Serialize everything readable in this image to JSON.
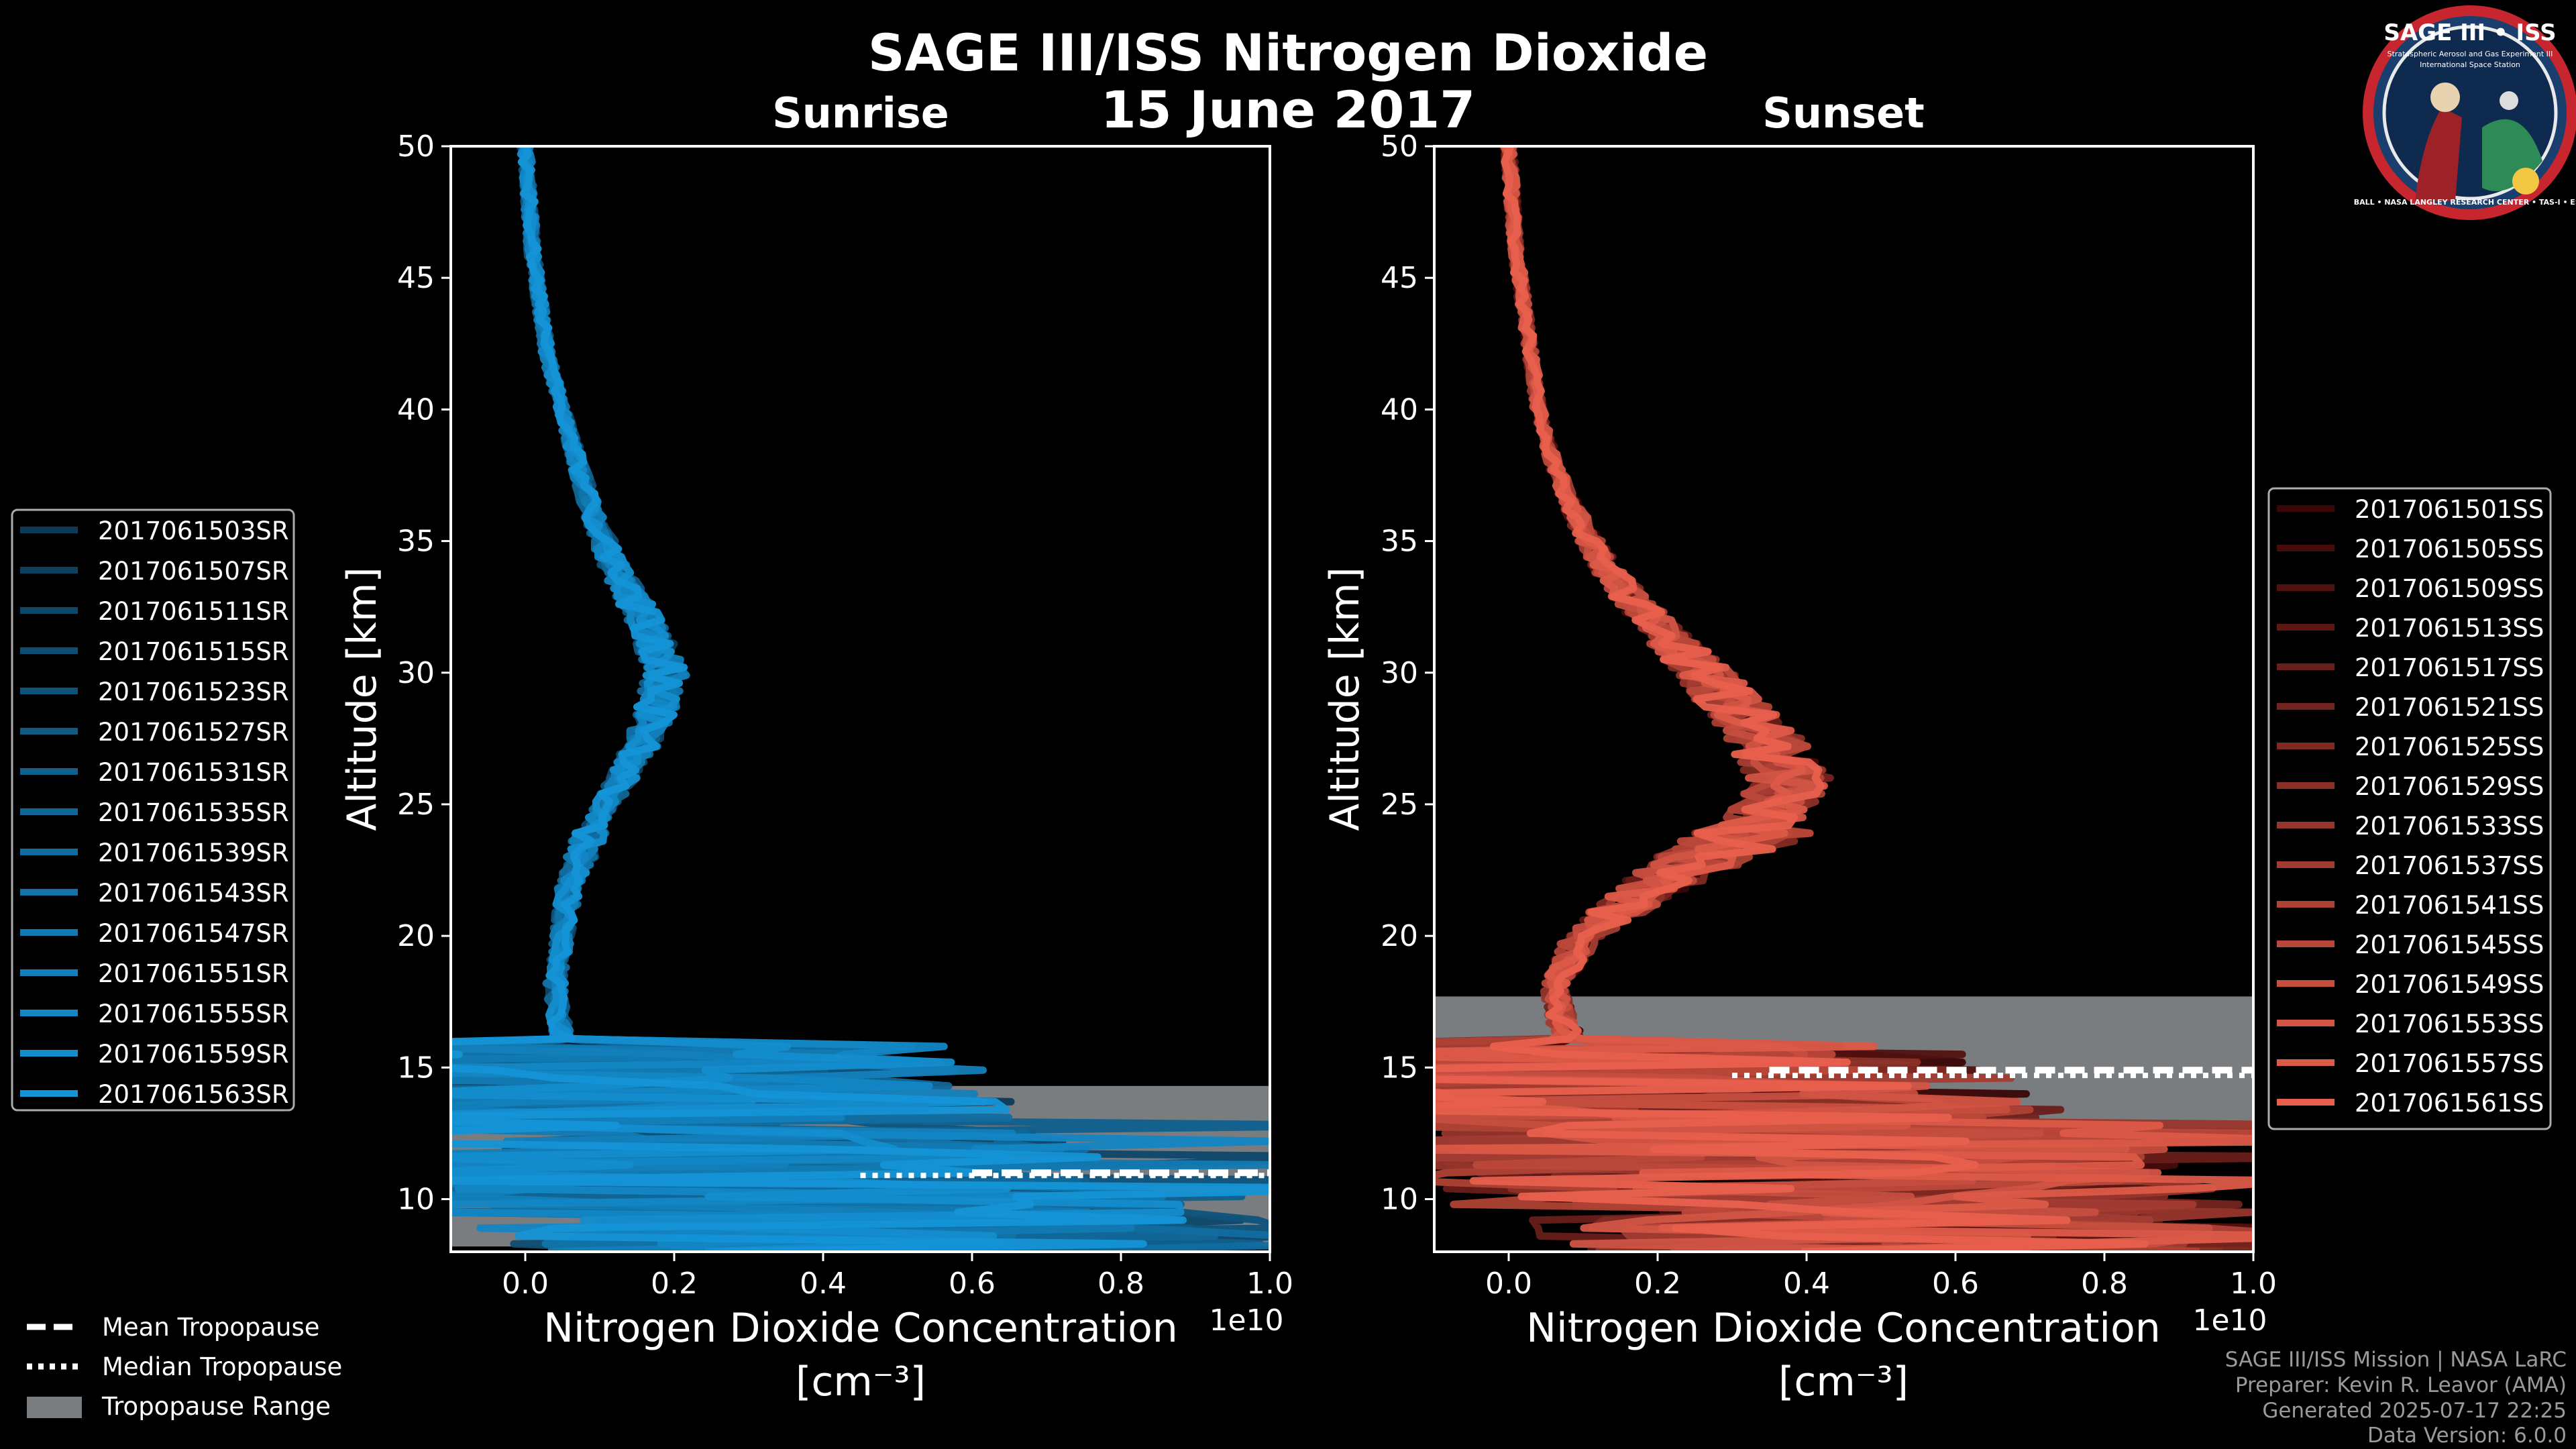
{
  "title": "SAGE III/ISS Nitrogen Dioxide",
  "date": "15 June 2017",
  "badge": {
    "label": "SAGE III • ISS",
    "line1": "Stratospheric Aerosol and Gas Experiment III",
    "line2": "International Space Station",
    "ring": "BALL • NASA LANGLEY RESEARCH CENTER • TAS-I • ESA"
  },
  "footer": {
    "line1": "SAGE III/ISS Mission | NASA LaRC",
    "line2": "Preparer: Kevin R. Leavor (AMA)",
    "line3": "Generated 2025-07-17 22:25",
    "line4": "Data Version: 6.0.0"
  },
  "tropopause_legend": {
    "mean": "Mean Tropopause",
    "median": "Median Tropopause",
    "range": "Tropopause Range"
  },
  "colors": {
    "sunrise_dark": "#0d3a57",
    "sunrise_light": "#1493d6",
    "sunset_dark": "#3a0606",
    "sunset_light": "#e8604d",
    "tropopause_fill": "#7a7d80"
  },
  "chart_data": [
    {
      "type": "line",
      "subtitle": "Sunrise",
      "xlabel": "Nitrogen Dioxide Concentration",
      "xunit": "[cm⁻³]",
      "xscale_label": "1e10",
      "ylabel": "Altitude [km]",
      "xlim": [
        -0.1,
        1.0
      ],
      "ylim": [
        8,
        50
      ],
      "xticks": [
        "0.0",
        "0.2",
        "0.4",
        "0.6",
        "0.8",
        "1.0"
      ],
      "xtick_values": [
        0.0,
        0.2,
        0.4,
        0.6,
        0.8,
        1.0
      ],
      "yticks": [
        "10",
        "15",
        "20",
        "25",
        "30",
        "35",
        "40",
        "45",
        "50"
      ],
      "ytick_values": [
        10,
        15,
        20,
        25,
        30,
        35,
        40,
        45,
        50
      ],
      "tropopause": {
        "min": 8.2,
        "max": 14.3,
        "mean": 11.0,
        "median": 10.9
      },
      "profile_alt": [
        8.5,
        10,
        12,
        14,
        16,
        18,
        20,
        22,
        24,
        26,
        28,
        30,
        32,
        34,
        36,
        38,
        40,
        42,
        44,
        46,
        48,
        50
      ],
      "profile_mean": [
        0.5,
        0.35,
        0.2,
        0.12,
        0.05,
        0.04,
        0.05,
        0.06,
        0.09,
        0.13,
        0.17,
        0.19,
        0.16,
        0.12,
        0.09,
        0.07,
        0.05,
        0.03,
        0.02,
        0.01,
        0.005,
        0.0
      ],
      "series": [
        {
          "name": "2017061503SR"
        },
        {
          "name": "2017061507SR"
        },
        {
          "name": "2017061511SR"
        },
        {
          "name": "2017061515SR"
        },
        {
          "name": "2017061523SR"
        },
        {
          "name": "2017061527SR"
        },
        {
          "name": "2017061531SR"
        },
        {
          "name": "2017061535SR"
        },
        {
          "name": "2017061539SR"
        },
        {
          "name": "2017061543SR"
        },
        {
          "name": "2017061547SR"
        },
        {
          "name": "2017061551SR"
        },
        {
          "name": "2017061555SR"
        },
        {
          "name": "2017061559SR"
        },
        {
          "name": "2017061563SR"
        }
      ]
    },
    {
      "type": "line",
      "subtitle": "Sunset",
      "xlabel": "Nitrogen Dioxide Concentration",
      "xunit": "[cm⁻³]",
      "xscale_label": "1e10",
      "ylabel": "Altitude [km]",
      "xlim": [
        -0.1,
        1.0
      ],
      "ylim": [
        8,
        50
      ],
      "xticks": [
        "0.0",
        "0.2",
        "0.4",
        "0.6",
        "0.8",
        "1.0"
      ],
      "xtick_values": [
        0.0,
        0.2,
        0.4,
        0.6,
        0.8,
        1.0
      ],
      "yticks": [
        "10",
        "15",
        "20",
        "25",
        "30",
        "35",
        "40",
        "45",
        "50"
      ],
      "ytick_values": [
        10,
        15,
        20,
        25,
        30,
        35,
        40,
        45,
        50
      ],
      "tropopause": {
        "min": 12.6,
        "max": 17.7,
        "mean": 14.9,
        "median": 14.7
      },
      "profile_alt": [
        8.5,
        10,
        12,
        14,
        16,
        18,
        20,
        22,
        24,
        26,
        28,
        30,
        32,
        34,
        36,
        38,
        40,
        42,
        44,
        46,
        48,
        50
      ],
      "profile_mean": [
        0.6,
        0.45,
        0.3,
        0.15,
        0.08,
        0.06,
        0.1,
        0.2,
        0.33,
        0.38,
        0.33,
        0.26,
        0.19,
        0.13,
        0.09,
        0.06,
        0.04,
        0.03,
        0.02,
        0.01,
        0.005,
        0.0
      ],
      "series": [
        {
          "name": "2017061501SS"
        },
        {
          "name": "2017061505SS"
        },
        {
          "name": "2017061509SS"
        },
        {
          "name": "2017061513SS"
        },
        {
          "name": "2017061517SS"
        },
        {
          "name": "2017061521SS"
        },
        {
          "name": "2017061525SS"
        },
        {
          "name": "2017061529SS"
        },
        {
          "name": "2017061533SS"
        },
        {
          "name": "2017061537SS"
        },
        {
          "name": "2017061541SS"
        },
        {
          "name": "2017061545SS"
        },
        {
          "name": "2017061549SS"
        },
        {
          "name": "2017061553SS"
        },
        {
          "name": "2017061557SS"
        },
        {
          "name": "2017061561SS"
        }
      ]
    }
  ]
}
